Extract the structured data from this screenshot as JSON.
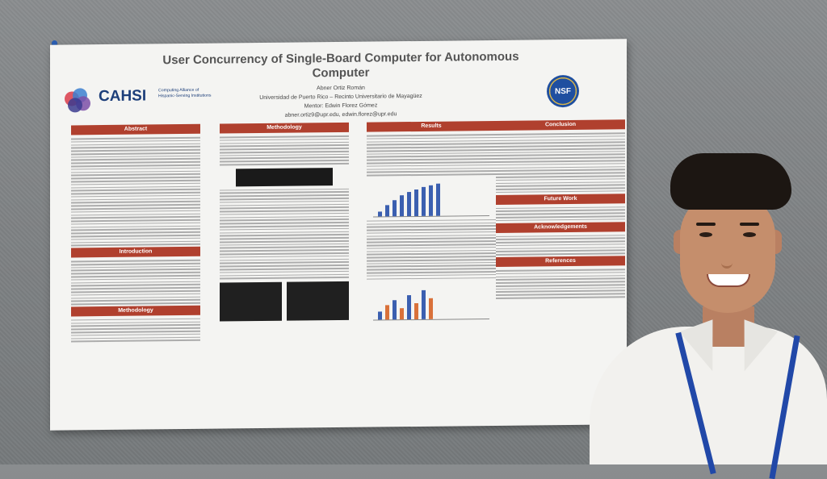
{
  "poster": {
    "title": "User Concurrency of Single-Board Computer for Autonomous Computer",
    "author": "Abner Ortiz Román",
    "affiliation": "Universidad de Puerto Rico – Recinto Universitario de Mayagüez",
    "mentor": "Mentor: Edwin Florez Gómez",
    "emails": "abner.ortiz9@upr.edu, edwin.florez@upr.edu",
    "logo_left_word": "CAHSI",
    "logo_left_sub": "Computing Alliance of Hispanic-Serving Institutions",
    "logo_right_word": "NSF",
    "sections": {
      "abstract": "Abstract",
      "introduction": "Introduction",
      "methodology_left": "Methodology",
      "methodology_mid": "Methodology",
      "results": "Results",
      "conclusion": "Conclusion",
      "future_work": "Future Work",
      "acknowledgements": "Acknowledgements",
      "references": "References"
    }
  }
}
